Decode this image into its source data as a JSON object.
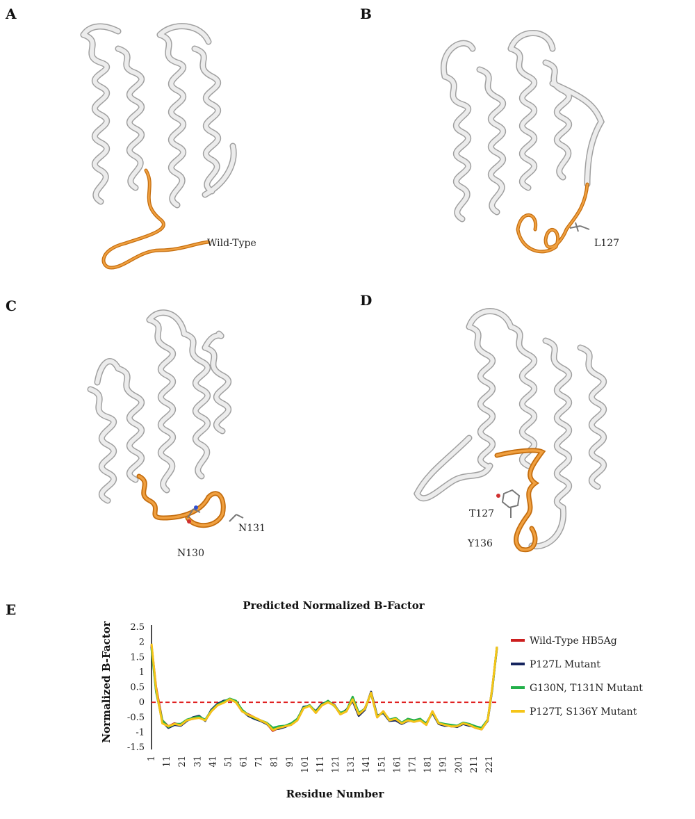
{
  "panels": [
    {
      "letter": "A",
      "label": "Wild-Type"
    },
    {
      "letter": "B",
      "label": "L127"
    },
    {
      "letter": "C",
      "labels": [
        "N131",
        "N130"
      ]
    },
    {
      "letter": "D",
      "labels": [
        "T127",
        "Y136"
      ]
    }
  ],
  "panel_e_letter": "E",
  "colors": {
    "ribbon": "#e8e8e8",
    "ribbon_stroke": "#9a9a9a",
    "highlight": "#e08a1e"
  },
  "chart_data": {
    "type": "line",
    "title": "Predicted Normalized B-Factor",
    "xlabel": "Residue Number",
    "ylabel": "Normalized B-Factor",
    "ylim": [
      -1.5,
      2.5
    ],
    "yticks": [
      "2.5",
      "2",
      "1.5",
      "1",
      "0.5",
      "0",
      "-0.5",
      "-1",
      "-1.5"
    ],
    "xlim": [
      1,
      226
    ],
    "xticks": [
      "1",
      "11",
      "21",
      "31",
      "41",
      "51",
      "61",
      "71",
      "81",
      "91",
      "101",
      "111",
      "121",
      "131",
      "141",
      "151",
      "161",
      "171",
      "181",
      "191",
      "201",
      "211",
      "221"
    ],
    "reference_line": {
      "y": 0,
      "color": "#e02020",
      "style": "dashed"
    },
    "legend_position": "right",
    "x": [
      1,
      4,
      8,
      12,
      16,
      20,
      24,
      28,
      32,
      36,
      40,
      44,
      48,
      52,
      56,
      60,
      64,
      68,
      72,
      76,
      80,
      84,
      88,
      92,
      96,
      100,
      104,
      108,
      112,
      116,
      120,
      124,
      128,
      132,
      136,
      140,
      144,
      148,
      152,
      156,
      160,
      164,
      168,
      172,
      176,
      180,
      184,
      188,
      192,
      196,
      200,
      204,
      208,
      212,
      216,
      220,
      223,
      226
    ],
    "series": [
      {
        "name": "Wild-Type HB5Ag",
        "color": "#cc1f1f",
        "values": [
          1.9,
          0.5,
          -0.6,
          -0.8,
          -0.7,
          -0.75,
          -0.6,
          -0.55,
          -0.5,
          -0.6,
          -0.3,
          -0.1,
          0.0,
          0.1,
          0.0,
          -0.3,
          -0.4,
          -0.5,
          -0.6,
          -0.7,
          -0.95,
          -0.85,
          -0.8,
          -0.75,
          -0.6,
          -0.2,
          -0.1,
          -0.35,
          -0.1,
          0.0,
          -0.1,
          -0.4,
          -0.3,
          0.1,
          -0.4,
          -0.2,
          0.3,
          -0.5,
          -0.3,
          -0.6,
          -0.55,
          -0.7,
          -0.6,
          -0.65,
          -0.6,
          -0.75,
          -0.3,
          -0.7,
          -0.75,
          -0.8,
          -0.8,
          -0.7,
          -0.75,
          -0.85,
          -0.9,
          -0.6,
          0.5,
          1.8
        ]
      },
      {
        "name": "P127L Mutant",
        "color": "#15245e",
        "values": [
          1.85,
          0.4,
          -0.65,
          -0.85,
          -0.75,
          -0.78,
          -0.62,
          -0.5,
          -0.45,
          -0.62,
          -0.25,
          -0.05,
          0.05,
          0.08,
          0.02,
          -0.28,
          -0.45,
          -0.55,
          -0.62,
          -0.72,
          -0.9,
          -0.88,
          -0.82,
          -0.72,
          -0.58,
          -0.15,
          -0.12,
          -0.3,
          -0.05,
          0.02,
          -0.08,
          -0.38,
          -0.25,
          0.05,
          -0.45,
          -0.25,
          0.35,
          -0.45,
          -0.35,
          -0.62,
          -0.6,
          -0.72,
          -0.62,
          -0.62,
          -0.58,
          -0.7,
          -0.35,
          -0.72,
          -0.78,
          -0.78,
          -0.82,
          -0.72,
          -0.78,
          -0.82,
          -0.88,
          -0.62,
          0.45,
          1.85
        ]
      },
      {
        "name": "G130N, T131N Mutant",
        "color": "#22b04a",
        "values": [
          1.8,
          0.35,
          -0.6,
          -0.82,
          -0.72,
          -0.72,
          -0.58,
          -0.52,
          -0.48,
          -0.58,
          -0.28,
          -0.08,
          0.02,
          0.12,
          0.05,
          -0.25,
          -0.42,
          -0.52,
          -0.6,
          -0.68,
          -0.85,
          -0.8,
          -0.78,
          -0.7,
          -0.55,
          -0.18,
          -0.1,
          -0.32,
          -0.08,
          0.05,
          -0.12,
          -0.35,
          -0.28,
          0.18,
          -0.35,
          -0.22,
          0.3,
          -0.48,
          -0.32,
          -0.58,
          -0.52,
          -0.68,
          -0.55,
          -0.6,
          -0.55,
          -0.72,
          -0.32,
          -0.68,
          -0.72,
          -0.75,
          -0.78,
          -0.68,
          -0.72,
          -0.8,
          -0.85,
          -0.58,
          0.48,
          1.82
        ]
      },
      {
        "name": "P127T, S136Y Mutant",
        "color": "#f5c518",
        "values": [
          1.95,
          0.45,
          -0.7,
          -0.8,
          -0.72,
          -0.76,
          -0.6,
          -0.55,
          -0.52,
          -0.6,
          -0.3,
          -0.1,
          -0.02,
          0.1,
          0.0,
          -0.3,
          -0.42,
          -0.5,
          -0.6,
          -0.7,
          -0.92,
          -0.85,
          -0.8,
          -0.75,
          -0.6,
          -0.2,
          -0.12,
          -0.35,
          -0.1,
          0.0,
          -0.1,
          -0.4,
          -0.3,
          0.1,
          -0.4,
          -0.22,
          0.32,
          -0.5,
          -0.3,
          -0.6,
          -0.55,
          -0.7,
          -0.6,
          -0.65,
          -0.6,
          -0.75,
          -0.3,
          -0.7,
          -0.75,
          -0.8,
          -0.8,
          -0.7,
          -0.75,
          -0.85,
          -0.9,
          -0.6,
          0.5,
          1.85
        ]
      }
    ]
  }
}
